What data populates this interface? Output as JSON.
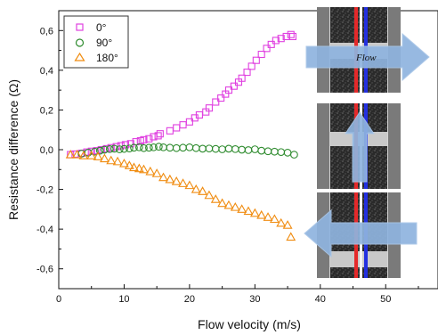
{
  "chart_data": {
    "type": "scatter",
    "xlabel": "Flow velocity (m/s)",
    "ylabel": "Resistance difference (Ω)",
    "xlim": [
      0,
      58
    ],
    "ylim": [
      -0.7,
      0.7
    ],
    "x_ticks": [
      0,
      10,
      20,
      30,
      40,
      50
    ],
    "y_ticks": [
      -0.6,
      -0.4,
      -0.2,
      0.0,
      0.2,
      0.4,
      0.6
    ],
    "x_tick_labels": [
      "0",
      "10",
      "20",
      "30",
      "40",
      "50"
    ],
    "y_tick_labels": [
      "-0,6",
      "-0,4",
      "-0,2",
      "0,0",
      "0,2",
      "0,4",
      "0,6"
    ],
    "legend_position": "top-left",
    "inset_label": "Flow",
    "series": [
      {
        "name": "0°",
        "marker": "square",
        "color": "#e040e0",
        "points": [
          [
            1.8,
            -0.025
          ],
          [
            2.5,
            -0.022
          ],
          [
            3.5,
            -0.018
          ],
          [
            4.3,
            -0.012
          ],
          [
            5.0,
            -0.008
          ],
          [
            5.8,
            -0.005
          ],
          [
            6.5,
            0.0
          ],
          [
            7.3,
            0.005
          ],
          [
            8.0,
            0.01
          ],
          [
            8.8,
            0.015
          ],
          [
            9.5,
            0.02
          ],
          [
            10.2,
            0.025
          ],
          [
            11.0,
            0.03
          ],
          [
            11.8,
            0.04
          ],
          [
            12.5,
            0.045
          ],
          [
            13.0,
            0.05
          ],
          [
            13.8,
            0.055
          ],
          [
            14.5,
            0.065
          ],
          [
            15.2,
            0.07
          ],
          [
            15.5,
            0.08
          ],
          [
            17.0,
            0.095
          ],
          [
            18.0,
            0.11
          ],
          [
            19.0,
            0.125
          ],
          [
            20.0,
            0.14
          ],
          [
            20.8,
            0.16
          ],
          [
            21.5,
            0.175
          ],
          [
            22.5,
            0.19
          ],
          [
            23.0,
            0.21
          ],
          [
            24.0,
            0.24
          ],
          [
            24.8,
            0.26
          ],
          [
            25.5,
            0.28
          ],
          [
            26.0,
            0.3
          ],
          [
            26.8,
            0.32
          ],
          [
            27.5,
            0.34
          ],
          [
            28.0,
            0.36
          ],
          [
            28.8,
            0.39
          ],
          [
            29.5,
            0.42
          ],
          [
            30.2,
            0.45
          ],
          [
            31.0,
            0.48
          ],
          [
            31.8,
            0.51
          ],
          [
            32.5,
            0.53
          ],
          [
            33.2,
            0.55
          ],
          [
            34.0,
            0.56
          ],
          [
            34.8,
            0.57
          ],
          [
            35.5,
            0.58
          ],
          [
            35.8,
            0.57
          ]
        ]
      },
      {
        "name": "90°",
        "marker": "circle",
        "color": "#2e8b2e",
        "points": [
          [
            3.5,
            -0.02
          ],
          [
            4.5,
            -0.015
          ],
          [
            5.5,
            -0.01
          ],
          [
            6.3,
            -0.005
          ],
          [
            7.0,
            0.0
          ],
          [
            7.8,
            0.003
          ],
          [
            8.5,
            0.005
          ],
          [
            9.3,
            0.002
          ],
          [
            10.0,
            0.004
          ],
          [
            10.8,
            0.006
          ],
          [
            11.5,
            0.01
          ],
          [
            12.3,
            0.012
          ],
          [
            13.0,
            0.008
          ],
          [
            13.8,
            0.01
          ],
          [
            14.5,
            0.012
          ],
          [
            15.3,
            0.015
          ],
          [
            16.0,
            0.012
          ],
          [
            17.0,
            0.01
          ],
          [
            18.0,
            0.008
          ],
          [
            19.0,
            0.01
          ],
          [
            20.0,
            0.012
          ],
          [
            21.0,
            0.008
          ],
          [
            22.0,
            0.005
          ],
          [
            23.0,
            0.006
          ],
          [
            24.0,
            0.004
          ],
          [
            25.0,
            0.002
          ],
          [
            26.0,
            0.005
          ],
          [
            27.0,
            0.003
          ],
          [
            28.0,
            0.0
          ],
          [
            29.0,
            -0.002
          ],
          [
            30.0,
            0.002
          ],
          [
            31.0,
            -0.005
          ],
          [
            32.0,
            -0.008
          ],
          [
            33.0,
            -0.01
          ],
          [
            34.0,
            -0.012
          ],
          [
            35.0,
            -0.015
          ],
          [
            36.0,
            -0.025
          ]
        ]
      },
      {
        "name": "180°",
        "marker": "triangle",
        "color": "#f08c10",
        "points": [
          [
            1.8,
            -0.025
          ],
          [
            2.8,
            -0.025
          ],
          [
            3.8,
            -0.03
          ],
          [
            5.0,
            -0.03
          ],
          [
            6.0,
            -0.035
          ],
          [
            7.0,
            -0.045
          ],
          [
            8.0,
            -0.055
          ],
          [
            9.0,
            -0.06
          ],
          [
            10.0,
            -0.07
          ],
          [
            10.8,
            -0.08
          ],
          [
            11.5,
            -0.09
          ],
          [
            12.3,
            -0.095
          ],
          [
            13.0,
            -0.1
          ],
          [
            14.0,
            -0.11
          ],
          [
            15.0,
            -0.12
          ],
          [
            16.0,
            -0.14
          ],
          [
            17.0,
            -0.15
          ],
          [
            18.0,
            -0.16
          ],
          [
            19.0,
            -0.17
          ],
          [
            20.0,
            -0.18
          ],
          [
            21.0,
            -0.2
          ],
          [
            22.0,
            -0.21
          ],
          [
            23.0,
            -0.23
          ],
          [
            24.0,
            -0.25
          ],
          [
            25.0,
            -0.27
          ],
          [
            26.0,
            -0.28
          ],
          [
            27.0,
            -0.29
          ],
          [
            28.0,
            -0.3
          ],
          [
            29.0,
            -0.31
          ],
          [
            30.0,
            -0.32
          ],
          [
            31.0,
            -0.33
          ],
          [
            32.0,
            -0.34
          ],
          [
            33.0,
            -0.35
          ],
          [
            34.0,
            -0.37
          ],
          [
            35.0,
            -0.38
          ],
          [
            35.5,
            -0.44
          ]
        ]
      }
    ]
  },
  "colors": {
    "axis": "#111111",
    "arrow_fill": "#8fb4df",
    "arrow_stroke": "#a9c6e8",
    "channel_red": "#e5292a",
    "channel_blue": "#2330e0",
    "frame_gray": "#7a7a7a",
    "plate_light": "#c9c9c9",
    "sensor_dark": "#222222"
  },
  "icons": [
    "flow-arrow-right-icon",
    "flow-arrow-up-icon",
    "flow-arrow-left-icon"
  ]
}
